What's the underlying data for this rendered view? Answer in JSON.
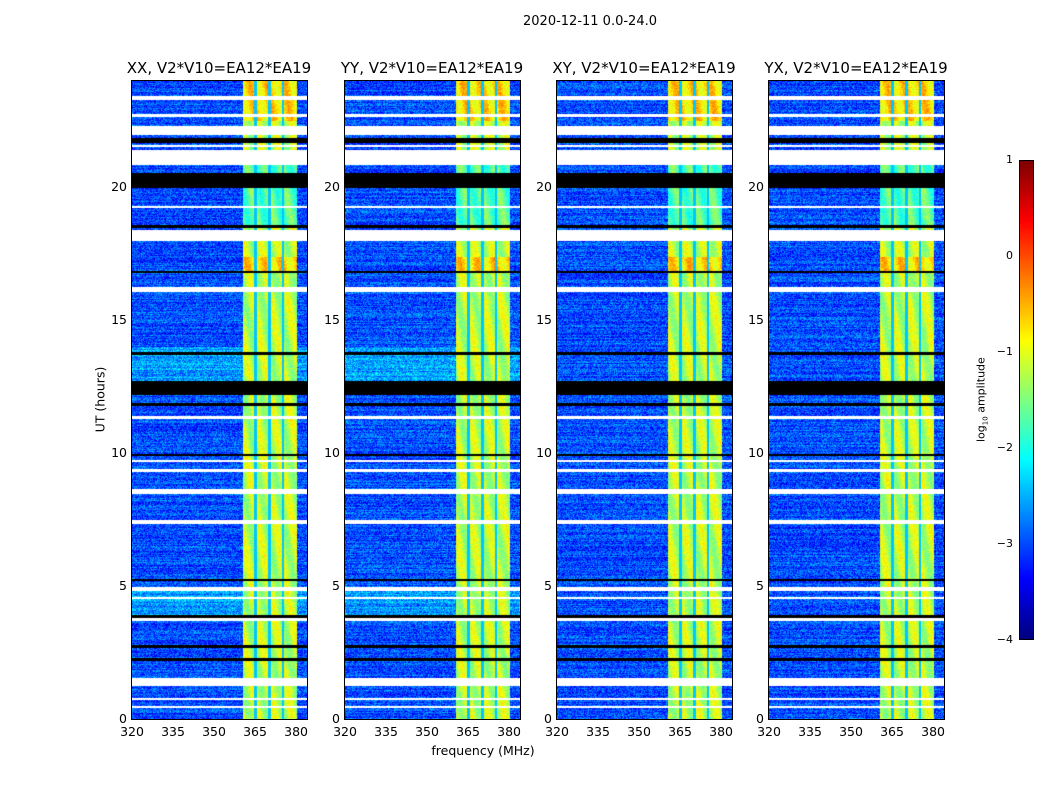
{
  "chart_data": {
    "type": "heatmap",
    "title": "2020-12-11 0.0-24.0",
    "xlabel": "frequency (MHz)",
    "ylabel": "UT (hours)",
    "xlim": [
      320,
      384
    ],
    "ylim": [
      0,
      24
    ],
    "xticks": [
      "320",
      "335",
      "350",
      "365",
      "380"
    ],
    "xtick_values": [
      320,
      335,
      350,
      365,
      380
    ],
    "yticks": [
      "0",
      "5",
      "10",
      "15",
      "20"
    ],
    "ytick_values": [
      0,
      5,
      10,
      15,
      20
    ],
    "panels": [
      {
        "title": "XX, V2*V10=EA12*EA19"
      },
      {
        "title": "YY, V2*V10=EA12*EA19"
      },
      {
        "title": "XY, V2*V10=EA12*EA19"
      },
      {
        "title": "YX, V2*V10=EA12*EA19"
      }
    ],
    "background_level": -3.0,
    "rfi_band_mhz": [
      360.5,
      380
    ],
    "rfi_level": -1.2,
    "band_gaps_mhz": [
      365,
      370,
      375
    ],
    "flagged_white_ut": [
      [
        23.3,
        23.45
      ],
      [
        22.65,
        22.75
      ],
      [
        22.0,
        22.3
      ],
      [
        21.55,
        21.6
      ],
      [
        20.85,
        21.4
      ],
      [
        19.25,
        19.3
      ],
      [
        18.0,
        18.4
      ],
      [
        16.1,
        16.25
      ],
      [
        11.3,
        11.4
      ],
      [
        9.7,
        9.75
      ],
      [
        9.3,
        9.4
      ],
      [
        8.5,
        8.65
      ],
      [
        7.35,
        7.5
      ],
      [
        4.85,
        4.95
      ],
      [
        4.55,
        4.6
      ],
      [
        3.7,
        3.8
      ],
      [
        1.55,
        1.55
      ],
      [
        1.25,
        1.55
      ],
      [
        0.75,
        0.8
      ],
      [
        0.45,
        0.5
      ]
    ],
    "flagged_black_ut": [
      [
        21.7,
        21.85
      ],
      [
        20.0,
        20.55
      ],
      [
        18.5,
        18.6
      ],
      [
        16.8,
        16.85
      ],
      [
        13.7,
        13.8
      ],
      [
        12.2,
        12.7
      ],
      [
        11.8,
        11.9
      ],
      [
        9.9,
        9.95
      ],
      [
        5.2,
        5.25
      ],
      [
        3.8,
        3.9
      ],
      [
        2.7,
        2.8
      ],
      [
        2.2,
        2.3
      ]
    ],
    "colorbar": {
      "label": "log10 amplitude",
      "label_main": "log",
      "label_sub": "10",
      "label_tail": " amplitude",
      "range": [
        -4,
        1
      ],
      "ticks": [
        "1",
        "0",
        "−1",
        "−2",
        "−3",
        "−4"
      ],
      "tick_values": [
        1,
        0,
        -1,
        -2,
        -3,
        -4
      ]
    }
  }
}
